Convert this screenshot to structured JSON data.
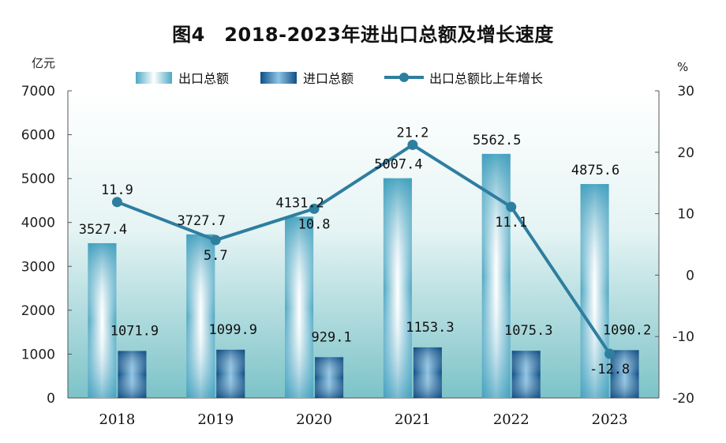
{
  "chart_data": {
    "type": "bar+line",
    "title": "图4　2018-2023年进出口总额及增长速度",
    "left_axis_unit": "亿元",
    "right_axis_unit": "%",
    "categories": [
      "2018",
      "2019",
      "2020",
      "2021",
      "2022",
      "2023"
    ],
    "series": [
      {
        "name": "出口总额",
        "type": "bar",
        "axis": "left",
        "values": [
          3527.4,
          3727.7,
          4131.2,
          5007.4,
          5562.5,
          4875.6
        ],
        "labels": [
          "3527.4",
          "3727.7",
          "4131.2",
          "5007.4",
          "5562.5",
          "4875.6"
        ]
      },
      {
        "name": "进口总额",
        "type": "bar",
        "axis": "left",
        "values": [
          1071.9,
          1099.9,
          929.1,
          1153.3,
          1075.3,
          1090.2
        ],
        "labels": [
          "1071.9",
          "1099.9",
          "929.1",
          "1153.3",
          "1075.3",
          "1090.2"
        ]
      },
      {
        "name": "出口总额比上年增长",
        "type": "line",
        "axis": "right",
        "values": [
          11.9,
          5.7,
          10.8,
          21.2,
          11.1,
          -12.8
        ],
        "labels": [
          "11.9",
          "5.7",
          "10.8",
          "21.2",
          "11.1",
          "-12.8"
        ]
      }
    ],
    "left_axis": {
      "min": 0,
      "max": 7000,
      "ticks": [
        "0",
        "1000",
        "2000",
        "3000",
        "4000",
        "5000",
        "6000",
        "7000"
      ]
    },
    "right_axis": {
      "min": -20,
      "max": 30,
      "ticks": [
        "-20",
        "-10",
        "0",
        "10",
        "20",
        "30"
      ]
    },
    "legend_position": "top",
    "grid": false,
    "colors": {
      "export_bar": "#5fb4cc",
      "import_bar": "#1d6aa3",
      "line": "#2e7ea0",
      "plot_bg_top": "#ffffff",
      "plot_bg_bottom": "#7fc6cc"
    }
  }
}
